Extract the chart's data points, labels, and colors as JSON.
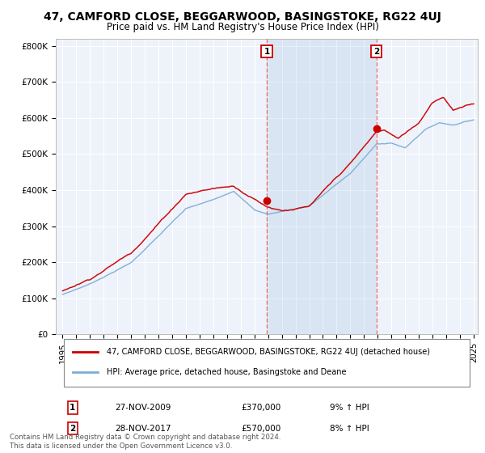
{
  "title": "47, CAMFORD CLOSE, BEGGARWOOD, BASINGSTOKE, RG22 4UJ",
  "subtitle": "Price paid vs. HM Land Registry's House Price Index (HPI)",
  "legend_label_red": "47, CAMFORD CLOSE, BEGGARWOOD, BASINGSTOKE, RG22 4UJ (detached house)",
  "legend_label_blue": "HPI: Average price, detached house, Basingstoke and Deane",
  "footnote": "Contains HM Land Registry data © Crown copyright and database right 2024.\nThis data is licensed under the Open Government Licence v3.0.",
  "purchase1_date": "27-NOV-2009",
  "purchase1_price": 370000,
  "purchase1_hpi": "9% ↑ HPI",
  "purchase2_date": "28-NOV-2017",
  "purchase2_price": 570000,
  "purchase2_hpi": "8% ↑ HPI",
  "vline1_x": 2009.9,
  "vline2_x": 2017.9,
  "marker1_x": 2009.9,
  "marker1_y": 370000,
  "marker2_x": 2017.9,
  "marker2_y": 570000,
  "ylim": [
    0,
    820000
  ],
  "xlim": [
    1994.5,
    2025.3
  ],
  "yticks": [
    0,
    100000,
    200000,
    300000,
    400000,
    500000,
    600000,
    700000,
    800000
  ],
  "ytick_labels": [
    "£0",
    "£100K",
    "£200K",
    "£300K",
    "£400K",
    "£500K",
    "£600K",
    "£700K",
    "£800K"
  ],
  "xticks": [
    1995,
    1996,
    1997,
    1998,
    1999,
    2000,
    2001,
    2002,
    2003,
    2004,
    2005,
    2006,
    2007,
    2008,
    2009,
    2010,
    2011,
    2012,
    2013,
    2014,
    2015,
    2016,
    2017,
    2018,
    2019,
    2020,
    2021,
    2022,
    2023,
    2024,
    2025
  ],
  "background_color": "#ffffff",
  "plot_bg_color": "#eef2fa",
  "grid_color": "#ffffff",
  "red_color": "#cc0000",
  "blue_color": "#7dadd4",
  "blue_fill_color": "#c5d8ee",
  "vline_color": "#e06060",
  "title_fontsize": 10,
  "subtitle_fontsize": 8.5
}
